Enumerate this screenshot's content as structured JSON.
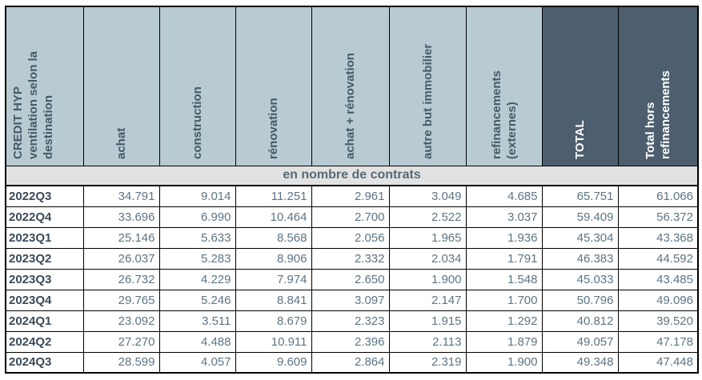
{
  "table": {
    "columns": [
      {
        "label": "CREDIT HYP\nventilation selon la\ndestination"
      },
      {
        "label": "achat"
      },
      {
        "label": "construction"
      },
      {
        "label": "rénovation"
      },
      {
        "label": "achat + rénovation"
      },
      {
        "label": "autre but immobilier"
      },
      {
        "label": "refinancements\n(externes)"
      },
      {
        "label": "TOTAL"
      },
      {
        "label": "Total hors\nrefinancements"
      }
    ],
    "band_label": "en nombre de contrats",
    "rows": [
      {
        "period": "2022Q3",
        "values": [
          "34.791",
          "9.014",
          "11.251",
          "2.961",
          "3.049",
          "4.685",
          "65.751",
          "61.066"
        ]
      },
      {
        "period": "2022Q4",
        "values": [
          "33.696",
          "6.990",
          "10.464",
          "2.700",
          "2.522",
          "3.037",
          "59.409",
          "56.372"
        ]
      },
      {
        "period": "2023Q1",
        "values": [
          "25.146",
          "5.633",
          "8.568",
          "2.056",
          "1.965",
          "1.936",
          "45.304",
          "43.368"
        ]
      },
      {
        "period": "2023Q2",
        "values": [
          "26.037",
          "5.283",
          "8.906",
          "2.332",
          "2.034",
          "1.791",
          "46.383",
          "44.592"
        ]
      },
      {
        "period": "2023Q3",
        "values": [
          "26.732",
          "4.229",
          "7.974",
          "2.650",
          "1.900",
          "1.548",
          "45.033",
          "43.485"
        ]
      },
      {
        "period": "2023Q4",
        "values": [
          "29.765",
          "5.246",
          "8.841",
          "3.097",
          "2.147",
          "1.700",
          "50.796",
          "49.096"
        ]
      },
      {
        "period": "2024Q1",
        "values": [
          "23.092",
          "3.511",
          "8.679",
          "2.323",
          "1.915",
          "1.292",
          "40.812",
          "39.520"
        ]
      },
      {
        "period": "2024Q2",
        "values": [
          "27.270",
          "4.488",
          "10.911",
          "2.396",
          "2.113",
          "1.879",
          "49.057",
          "47.178"
        ]
      },
      {
        "period": "2024Q3",
        "values": [
          "28.599",
          "4.057",
          "9.609",
          "2.864",
          "2.319",
          "1.900",
          "49.348",
          "47.448"
        ]
      }
    ]
  },
  "colors": {
    "header_light_bg": "#b8cbd2",
    "header_dark_bg": "#4d5f6e",
    "header_text": "#455a68",
    "header_text_on_dark": "#ffffff",
    "band_bg": "#e2e2e2",
    "band_text": "#596873",
    "row_label_text": "#3a4a58",
    "value_text": "#5d7484",
    "border": "#000000"
  }
}
